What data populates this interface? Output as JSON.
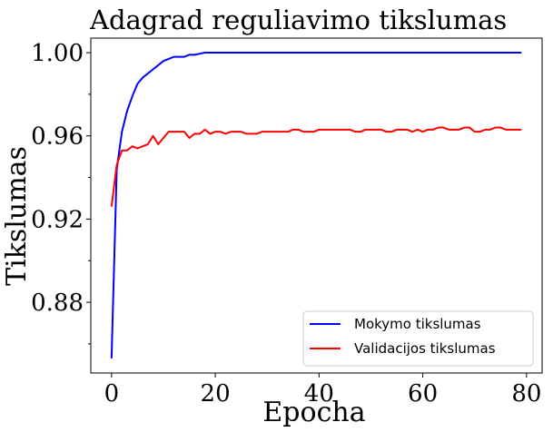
{
  "chart_data": {
    "type": "line",
    "title": "Adagrad reguliavimo tikslumas",
    "xlabel": "Epocha",
    "ylabel": "Tikslumas",
    "xlim": [
      -4,
      83
    ],
    "ylim": [
      0.846,
      1.007
    ],
    "xticks": [
      0,
      20,
      40,
      60,
      80
    ],
    "xtick_labels": [
      "0",
      "20",
      "40",
      "60",
      "80"
    ],
    "yticks": [
      0.88,
      0.92,
      0.96,
      1.0
    ],
    "ytick_labels": [
      "0.88",
      "0.92",
      "0.96",
      "1.00"
    ],
    "yticks_minor": [
      0.86,
      0.9,
      0.94,
      0.98
    ],
    "grid": false,
    "legend_position": "lower-right",
    "x": [
      0,
      1,
      2,
      3,
      4,
      5,
      6,
      7,
      8,
      9,
      10,
      11,
      12,
      13,
      14,
      15,
      16,
      17,
      18,
      19,
      20,
      21,
      22,
      23,
      24,
      25,
      26,
      27,
      28,
      29,
      30,
      31,
      32,
      33,
      34,
      35,
      36,
      37,
      38,
      39,
      40,
      41,
      42,
      43,
      44,
      45,
      46,
      47,
      48,
      49,
      50,
      51,
      52,
      53,
      54,
      55,
      56,
      57,
      58,
      59,
      60,
      61,
      62,
      63,
      64,
      65,
      66,
      67,
      68,
      69,
      70,
      71,
      72,
      73,
      74,
      75,
      76,
      77,
      78,
      79
    ],
    "series": [
      {
        "name": "Mokymo tikslumas",
        "color": "#0000ff",
        "values": [
          0.853,
          0.944,
          0.962,
          0.972,
          0.979,
          0.985,
          0.988,
          0.99,
          0.992,
          0.994,
          0.996,
          0.997,
          0.998,
          0.998,
          0.998,
          0.999,
          0.999,
          0.9995,
          1.0,
          1.0,
          1.0,
          1.0,
          1.0,
          1.0,
          1.0,
          1.0,
          1.0,
          1.0,
          1.0,
          1.0,
          1.0,
          1.0,
          1.0,
          1.0,
          1.0,
          1.0,
          1.0,
          1.0,
          1.0,
          1.0,
          1.0,
          1.0,
          1.0,
          1.0,
          1.0,
          1.0,
          1.0,
          1.0,
          1.0,
          1.0,
          1.0,
          1.0,
          1.0,
          1.0,
          1.0,
          1.0,
          1.0,
          1.0,
          1.0,
          1.0,
          1.0,
          1.0,
          1.0,
          1.0,
          1.0,
          1.0,
          1.0,
          1.0,
          1.0,
          1.0,
          1.0,
          1.0,
          1.0,
          1.0,
          1.0,
          1.0,
          1.0,
          1.0,
          1.0,
          1.0
        ]
      },
      {
        "name": "Validacijos tikslumas",
        "color": "#ff0000",
        "values": [
          0.926,
          0.946,
          0.953,
          0.953,
          0.955,
          0.954,
          0.955,
          0.956,
          0.96,
          0.956,
          0.959,
          0.962,
          0.962,
          0.962,
          0.962,
          0.959,
          0.961,
          0.961,
          0.963,
          0.961,
          0.962,
          0.962,
          0.961,
          0.962,
          0.962,
          0.962,
          0.961,
          0.961,
          0.961,
          0.962,
          0.962,
          0.962,
          0.962,
          0.962,
          0.962,
          0.963,
          0.963,
          0.962,
          0.962,
          0.962,
          0.963,
          0.963,
          0.963,
          0.963,
          0.963,
          0.963,
          0.963,
          0.962,
          0.962,
          0.963,
          0.963,
          0.963,
          0.963,
          0.962,
          0.962,
          0.963,
          0.963,
          0.963,
          0.962,
          0.963,
          0.962,
          0.963,
          0.963,
          0.964,
          0.964,
          0.963,
          0.963,
          0.963,
          0.964,
          0.964,
          0.962,
          0.962,
          0.963,
          0.963,
          0.964,
          0.964,
          0.963,
          0.963,
          0.963,
          0.963
        ]
      }
    ]
  }
}
